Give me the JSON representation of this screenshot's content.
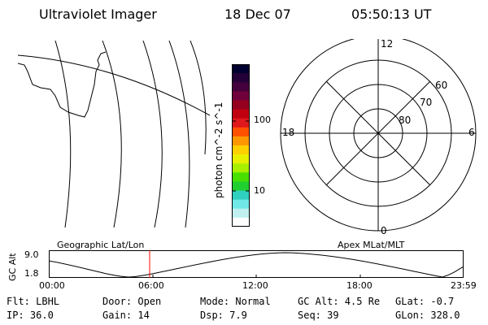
{
  "header": {
    "title": "Ultraviolet Imager",
    "date": "18 Dec 07",
    "time": "05:50:13 UT"
  },
  "colorbar": {
    "label": "photon cm^-2 s^-1",
    "ticks": [
      "100",
      "10"
    ],
    "colors": [
      "#000030",
      "#240038",
      "#44003c",
      "#70003c",
      "#94001e",
      "#c00010",
      "#e0181c",
      "#ff5000",
      "#ff9800",
      "#ffd000",
      "#e8f000",
      "#a8f000",
      "#48e000",
      "#20d030",
      "#30d0c0",
      "#70e8e8",
      "#c0f0f0",
      "#ffffff"
    ]
  },
  "polar": {
    "mlt_labels": [
      "12",
      "18",
      "6",
      "0"
    ],
    "lat_labels": [
      "60",
      "70",
      "80"
    ]
  },
  "panel_labels": {
    "left": "Geographic Lat/Lon",
    "right": "Apex MLat/MLT"
  },
  "gc_alt": {
    "axis_label": "GC Alt",
    "y_ticks": [
      "9.0",
      "1.8"
    ],
    "x_ticks": [
      "00:00",
      "06:00",
      "12:00",
      "18:00",
      "23:59"
    ],
    "marker_color": "#ff0000"
  },
  "status": {
    "row1": [
      {
        "text": "Flt: LBHL"
      },
      {
        "text": "Door: Open"
      },
      {
        "text": "Mode: Normal"
      },
      {
        "text": "GC Alt: 4.5 Re"
      },
      {
        "text": "GLat:  -0.7"
      }
    ],
    "row2": [
      {
        "text": "IP: 36.0"
      },
      {
        "text": "Gain: 14"
      },
      {
        "text": "Dsp:    7.9"
      },
      {
        "text": "Seq: 39"
      },
      {
        "text": "GLon: 328.0"
      }
    ]
  }
}
